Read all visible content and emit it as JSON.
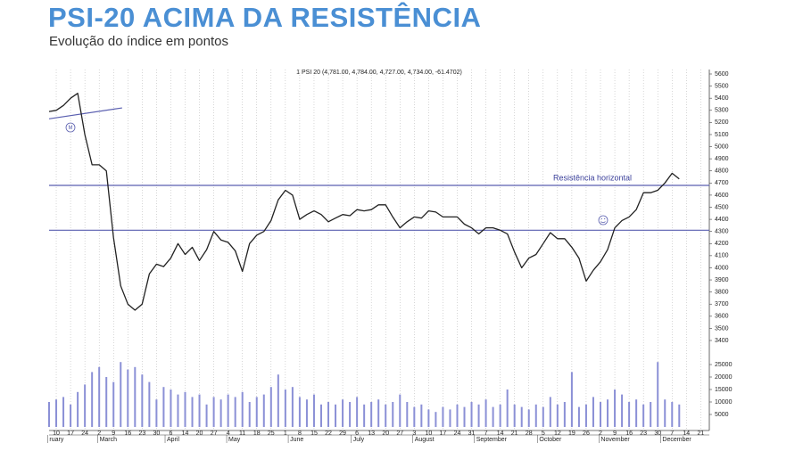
{
  "chart_data": {
    "type": "line",
    "title": "PSI-20 ACIMA DA RESISTÊNCIA",
    "subtitle": "Evolução do índice em pontos",
    "header": "1 PSI 20 (4,781.00, 4,784.00, 4,727.00, 4,734.00, -61.4702)",
    "annotation": "Resistência horizontal",
    "color": "#222222",
    "line_color": "#5a5fb0",
    "volume_color": "#8b90d6",
    "x": [
      -0.5,
      0,
      0.5,
      1,
      1.5,
      2,
      2.5,
      3,
      3.5,
      4,
      4.5,
      5,
      5.5,
      6,
      6.5,
      7,
      7.5,
      8,
      8.5,
      9,
      9.5,
      10,
      10.5,
      11,
      11.5,
      12,
      12.5,
      13,
      13.5,
      14,
      14.5,
      15,
      15.5,
      16,
      16.5,
      17,
      17.5,
      18,
      18.5,
      19,
      19.5,
      20,
      20.5,
      21,
      21.5,
      22,
      22.5,
      23,
      23.5,
      24,
      24.5,
      25,
      25.5,
      26,
      26.5,
      27,
      27.5,
      28,
      28.5,
      29,
      29.5,
      30,
      30.5,
      31,
      31.5,
      32,
      32.5,
      33,
      33.5,
      34,
      34.5,
      35,
      35.5,
      36,
      36.5,
      37,
      37.5,
      38,
      38.5,
      39,
      39.5,
      40,
      40.5,
      41,
      41.5,
      42,
      42.5,
      43,
      43.5
    ],
    "values": [
      5290,
      5300,
      5340,
      5400,
      5440,
      5100,
      4850,
      4850,
      4800,
      4250,
      3850,
      3700,
      3650,
      3700,
      3950,
      4030,
      4010,
      4080,
      4200,
      4110,
      4170,
      4060,
      4150,
      4300,
      4230,
      4210,
      4140,
      3970,
      4200,
      4270,
      4300,
      4390,
      4560,
      4640,
      4600,
      4400,
      4440,
      4470,
      4440,
      4380,
      4410,
      4440,
      4430,
      4480,
      4470,
      4480,
      4520,
      4520,
      4420,
      4330,
      4380,
      4420,
      4410,
      4470,
      4460,
      4420,
      4420,
      4420,
      4360,
      4330,
      4280,
      4330,
      4330,
      4310,
      4280,
      4130,
      4000,
      4080,
      4110,
      4200,
      4290,
      4240,
      4240,
      4170,
      4080,
      3890,
      3980,
      4050,
      4150,
      4330,
      4390,
      4420,
      4480,
      4620,
      4620,
      4640,
      4700,
      4780,
      4734
    ],
    "volume": [
      10000,
      11000,
      12000,
      9000,
      14000,
      17000,
      22000,
      24000,
      20000,
      18000,
      26000,
      23000,
      24000,
      21000,
      18000,
      11000,
      16000,
      15000,
      13000,
      14000,
      12000,
      13000,
      9000,
      12000,
      11000,
      13000,
      12000,
      14000,
      10000,
      12000,
      13000,
      16000,
      21000,
      15000,
      16000,
      12000,
      11000,
      13000,
      9000,
      10000,
      9000,
      11000,
      10000,
      12000,
      9000,
      10000,
      11000,
      9000,
      10000,
      13000,
      10000,
      8000,
      9000,
      7000,
      6000,
      8000,
      7000,
      9000,
      8000,
      10000,
      9000,
      11000,
      8000,
      9000,
      15000,
      9000,
      8000,
      7000,
      9000,
      8000,
      12000,
      9000,
      10000,
      22000,
      8000,
      9000,
      12000,
      10000,
      11000,
      15000,
      13000,
      10000,
      11000,
      9000,
      10000,
      26000,
      11000,
      10000,
      9000
    ],
    "xlim": [
      -0.5,
      45.6
    ],
    "ylim": [
      3400,
      5600
    ],
    "yticks": [
      3400,
      3500,
      3600,
      3700,
      3800,
      3900,
      4000,
      4100,
      4200,
      4300,
      4400,
      4500,
      4600,
      4700,
      4800,
      4900,
      5000,
      5100,
      5200,
      5300,
      5400,
      5500,
      5600
    ],
    "vol_ylim": [
      0,
      25000
    ],
    "vol_yticks": [
      5000,
      10000,
      15000,
      20000,
      25000
    ],
    "hlines": [
      4680,
      4310
    ],
    "trendline": {
      "x": [
        -0.5,
        4.6
      ],
      "y": [
        5230,
        5320
      ]
    },
    "xticks": [
      {
        "value": 0,
        "label": "10"
      },
      {
        "value": 1,
        "label": "17"
      },
      {
        "value": 2,
        "label": "24"
      },
      {
        "value": 3,
        "label": "2"
      },
      {
        "value": 4,
        "label": "9"
      },
      {
        "value": 5,
        "label": "16"
      },
      {
        "value": 6,
        "label": "23"
      },
      {
        "value": 7,
        "label": "30"
      },
      {
        "value": 8,
        "label": "6"
      },
      {
        "value": 9,
        "label": "14"
      },
      {
        "value": 10,
        "label": "20"
      },
      {
        "value": 11,
        "label": "27"
      },
      {
        "value": 12,
        "label": "4"
      },
      {
        "value": 13,
        "label": "11"
      },
      {
        "value": 14,
        "label": "18"
      },
      {
        "value": 15,
        "label": "25"
      },
      {
        "value": 16,
        "label": "1"
      },
      {
        "value": 17,
        "label": "8"
      },
      {
        "value": 18,
        "label": "15"
      },
      {
        "value": 19,
        "label": "22"
      },
      {
        "value": 20,
        "label": "29"
      },
      {
        "value": 21,
        "label": "6"
      },
      {
        "value": 22,
        "label": "13"
      },
      {
        "value": 23,
        "label": "20"
      },
      {
        "value": 24,
        "label": "27"
      },
      {
        "value": 25,
        "label": "3"
      },
      {
        "value": 26,
        "label": "10"
      },
      {
        "value": 27,
        "label": "17"
      },
      {
        "value": 28,
        "label": "24"
      },
      {
        "value": 29,
        "label": "31"
      },
      {
        "value": 30,
        "label": "7"
      },
      {
        "value": 31,
        "label": "14"
      },
      {
        "value": 32,
        "label": "21"
      },
      {
        "value": 33,
        "label": "28"
      },
      {
        "value": 34,
        "label": "5"
      },
      {
        "value": 35,
        "label": "12"
      },
      {
        "value": 36,
        "label": "19"
      },
      {
        "value": 37,
        "label": "26"
      },
      {
        "value": 38,
        "label": "2"
      },
      {
        "value": 39,
        "label": "9"
      },
      {
        "value": 40,
        "label": "16"
      },
      {
        "value": 41,
        "label": "23"
      },
      {
        "value": 42,
        "label": "30"
      },
      {
        "value": 43,
        "label": "7"
      },
      {
        "value": 44,
        "label": "14"
      },
      {
        "value": 45,
        "label": "21"
      }
    ],
    "months": [
      {
        "label": "ruary",
        "x": -0.6
      },
      {
        "label": "March",
        "x": 2.9
      },
      {
        "label": "April",
        "x": 7.6
      },
      {
        "label": "May",
        "x": 11.9
      },
      {
        "label": "June",
        "x": 16.2
      },
      {
        "label": "July",
        "x": 20.6
      },
      {
        "label": "August",
        "x": 24.9
      },
      {
        "label": "September",
        "x": 29.2
      },
      {
        "label": "October",
        "x": 33.6
      },
      {
        "label": "November",
        "x": 37.9
      },
      {
        "label": "December",
        "x": 42.2
      }
    ]
  }
}
